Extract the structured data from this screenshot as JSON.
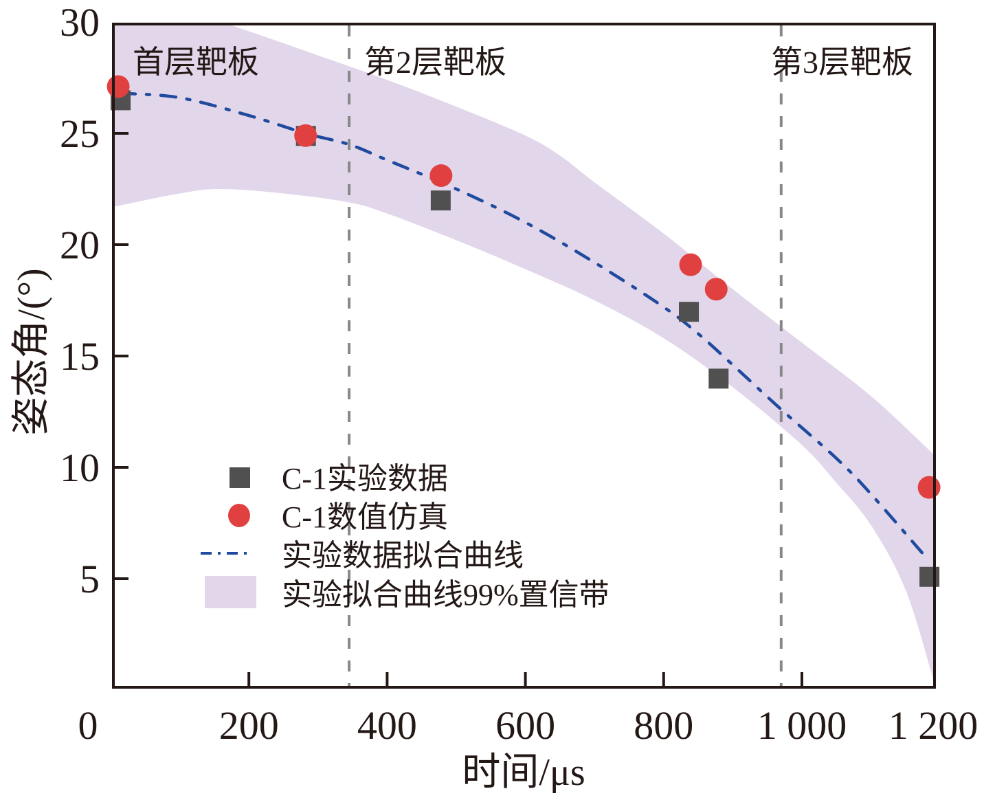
{
  "chart_data": {
    "type": "scatter",
    "title": "",
    "xlabel": "时间/μs",
    "ylabel": "姿态角/(°)",
    "xlim": [
      0,
      1200
    ],
    "ylim": [
      0,
      30
    ],
    "grid": false,
    "x_ticks": [
      0,
      200,
      400,
      600,
      800,
      1000,
      1200
    ],
    "x_tick_labels": [
      "0",
      "200",
      "400",
      "600",
      "800",
      "1 000",
      "1 200"
    ],
    "y_ticks": [
      5,
      10,
      15,
      20,
      25,
      30
    ],
    "y_tick_labels": [
      "5",
      "10",
      "15",
      "20",
      "25",
      "30"
    ],
    "legend_position": "lower-left",
    "colors": {
      "experiment": "#505050",
      "simulation": "#e04040",
      "fit": "#1f4a9e",
      "band": "#e2d6ea",
      "divider": "#888888",
      "axis": "#231815"
    },
    "series": [
      {
        "name": "C-1实验数据",
        "kind": "scatter",
        "marker": "square",
        "x": [
          14,
          282,
          477,
          836,
          879,
          1184
        ],
        "y": [
          26.5,
          24.9,
          22.0,
          17.0,
          14.0,
          5.1
        ]
      },
      {
        "name": "C-1数值仿真",
        "kind": "scatter",
        "marker": "circle",
        "x": [
          11,
          282,
          478,
          839,
          876,
          1184
        ],
        "y": [
          27.1,
          24.9,
          23.1,
          19.1,
          18.0,
          9.1
        ]
      },
      {
        "name": "实验数据拟合曲线",
        "kind": "line",
        "style": "dash-dot",
        "x": [
          14,
          100,
          200,
          282,
          345,
          400,
          500,
          600,
          700,
          800,
          850,
          900,
          970,
          1050,
          1100,
          1184
        ],
        "y": [
          26.8,
          26.6,
          25.8,
          25.0,
          24.5,
          23.8,
          22.5,
          21.0,
          19.2,
          17.2,
          16.0,
          14.6,
          12.6,
          10.4,
          8.8,
          5.8
        ]
      },
      {
        "name": "实验拟合曲线99%置信带",
        "kind": "band",
        "x_upper": [
          4,
          160,
          300,
          400,
          500,
          600,
          650,
          700,
          800,
          900,
          1000,
          1100,
          1190
        ],
        "upper": [
          31.5,
          30.0,
          28.5,
          27.4,
          26.2,
          24.9,
          24.0,
          22.8,
          20.5,
          18.0,
          15.6,
          13.2,
          10.6
        ],
        "x_lower": [
          4,
          100,
          160,
          250,
          345,
          400,
          500,
          600,
          700,
          800,
          900,
          1000,
          1050,
          1100,
          1150,
          1190
        ],
        "lower": [
          21.7,
          22.3,
          22.5,
          22.3,
          21.9,
          21.4,
          20.2,
          18.9,
          17.5,
          15.8,
          13.6,
          11.0,
          9.3,
          7.4,
          4.5,
          0.5
        ]
      }
    ],
    "dividers": [
      {
        "x": 345,
        "label": "第2层靶板"
      },
      {
        "x": 970,
        "label": "第3层靶板"
      }
    ],
    "annotations": [
      {
        "text": "首层靶板",
        "x": 30,
        "y": 28.7
      },
      {
        "text": "第2层靶板",
        "x": 370,
        "y": 28.7
      },
      {
        "text": "第3层靶板",
        "x": 960,
        "y": 28.7
      }
    ]
  },
  "legend": {
    "items": [
      {
        "label": "C-1实验数据",
        "symbol": "square"
      },
      {
        "label": "C-1数值仿真",
        "symbol": "circle"
      },
      {
        "label": "实验数据拟合曲线",
        "symbol": "dash-dot"
      },
      {
        "label": "实验拟合曲线99%置信带",
        "symbol": "band"
      }
    ]
  }
}
